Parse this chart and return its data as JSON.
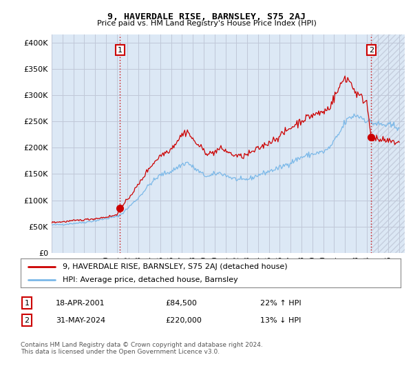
{
  "title": "9, HAVERDALE RISE, BARNSLEY, S75 2AJ",
  "subtitle": "Price paid vs. HM Land Registry's House Price Index (HPI)",
  "ylabel_ticks": [
    "£0",
    "£50K",
    "£100K",
    "£150K",
    "£200K",
    "£250K",
    "£300K",
    "£350K",
    "£400K"
  ],
  "ytick_values": [
    0,
    50000,
    100000,
    150000,
    200000,
    250000,
    300000,
    350000,
    400000
  ],
  "ylim": [
    0,
    415000
  ],
  "xlim_start": 1995.0,
  "xlim_end": 2027.5,
  "transaction1_x": 2001.3,
  "transaction1_y": 84500,
  "transaction2_x": 2024.42,
  "transaction2_y": 220000,
  "transaction1_label": "1",
  "transaction2_label": "2",
  "legend_line1": "9, HAVERDALE RISE, BARNSLEY, S75 2AJ (detached house)",
  "legend_line2": "HPI: Average price, detached house, Barnsley",
  "table_row1_num": "1",
  "table_row1_date": "18-APR-2001",
  "table_row1_price": "£84,500",
  "table_row1_hpi": "22% ↑ HPI",
  "table_row2_num": "2",
  "table_row2_date": "31-MAY-2024",
  "table_row2_price": "£220,000",
  "table_row2_hpi": "13% ↓ HPI",
  "footnote": "Contains HM Land Registry data © Crown copyright and database right 2024.\nThis data is licensed under the Open Government Licence v3.0.",
  "hpi_color": "#7ab8e8",
  "price_color": "#cc0000",
  "grid_color": "#c0c8d8",
  "bg_color": "#dce8f5",
  "transaction_vline_color": "#cc0000",
  "box_border_color": "#cc0000",
  "hatch_color": "#c0c8d8"
}
